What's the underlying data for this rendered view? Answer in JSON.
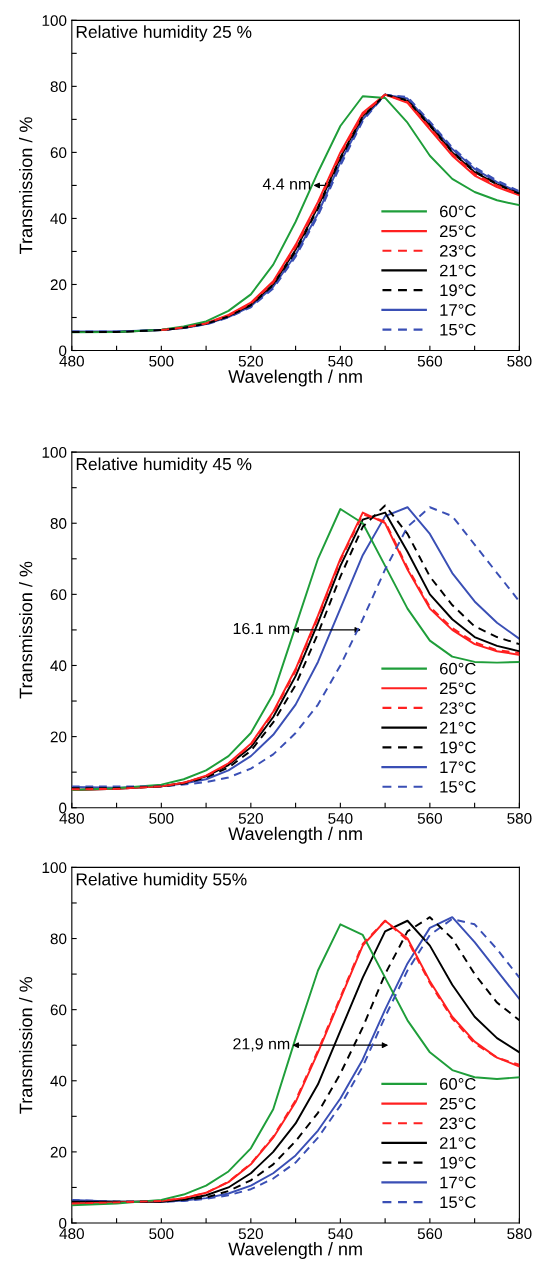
{
  "chart_data": [
    {
      "type": "line",
      "title": "Relative humidity 25 %",
      "xlabel": "Wavelength / nm",
      "ylabel": "Transmission / %",
      "x": [
        480,
        490,
        500,
        505,
        510,
        515,
        520,
        525,
        530,
        535,
        540,
        545,
        550,
        555,
        560,
        565,
        570,
        575,
        580
      ],
      "xlim": [
        480,
        580
      ],
      "xticks": [
        480,
        {
          "value": 490,
          "label": null
        },
        500,
        {
          "value": 510,
          "label": null
        },
        520,
        {
          "value": 530,
          "label": null
        },
        540,
        {
          "value": 550,
          "label": null
        },
        560,
        {
          "value": 570,
          "label": null
        },
        580
      ],
      "ylim": [
        0,
        100
      ],
      "yticks": [
        0,
        {
          "value": 10,
          "label": null
        },
        20,
        {
          "value": 30,
          "label": null
        },
        40,
        {
          "value": 50,
          "label": null
        },
        60,
        {
          "value": 70,
          "label": null
        },
        80,
        {
          "value": 90,
          "label": null
        },
        100
      ],
      "grid": false,
      "legend": "lower right",
      "marker": "none",
      "annotations": [
        "4.4 nm"
      ],
      "series": [
        {
          "name": "60°C",
          "color": "#1f9e3a",
          "line_style": "solid",
          "values": [
            5.5,
            5.6,
            6.3,
            7.3,
            8.8,
            12,
            17,
            26,
            39,
            54,
            68,
            77,
            76.5,
            69,
            59,
            52,
            48,
            45.5,
            44
          ]
        },
        {
          "name": "25°C",
          "color": "#ff2020",
          "line_style": "solid",
          "values": [
            null,
            null,
            6.2,
            7,
            8.3,
            10.8,
            14.5,
            21,
            32,
            45,
            60,
            72,
            77.5,
            75,
            67,
            59,
            53,
            49.5,
            47
          ]
        },
        {
          "name": "23°C",
          "color": "#ff2020",
          "line_style": "dashed",
          "values": [
            null,
            null,
            6.2,
            7,
            8.2,
            10.6,
            14.2,
            20.6,
            31.3,
            44.3,
            59.3,
            71.5,
            77.5,
            75.3,
            67.5,
            59.5,
            53.5,
            50,
            47.2
          ]
        },
        {
          "name": "21°C",
          "color": "#000000",
          "line_style": "solid",
          "values": [
            5.6,
            5.6,
            6.2,
            6.9,
            8.1,
            10.4,
            13.9,
            20.1,
            30.5,
            43.5,
            58.5,
            71,
            77.5,
            75.6,
            68,
            60,
            54,
            50.3,
            47.3
          ]
        },
        {
          "name": "19°C",
          "color": "#000000",
          "line_style": "dashed",
          "values": [
            5.6,
            5.6,
            6.2,
            6.9,
            8.1,
            10.3,
            13.7,
            19.8,
            30,
            43,
            58,
            70.7,
            77.5,
            75.8,
            68.3,
            60.3,
            54.3,
            50.5,
            47.5
          ]
        },
        {
          "name": "17°C",
          "color": "#3a4fb5",
          "line_style": "solid",
          "values": [
            5.8,
            5.8,
            6.2,
            6.8,
            8,
            10.1,
            13.4,
            19.3,
            29,
            41.5,
            57,
            70,
            77.5,
            76.3,
            68.8,
            61,
            55,
            51,
            47.8
          ]
        },
        {
          "name": "15°C",
          "color": "#3a4fb5",
          "line_style": "dashed",
          "values": [
            5.8,
            5.8,
            6.2,
            6.8,
            7.9,
            10,
            13.1,
            18.8,
            28.4,
            40.8,
            56,
            69.5,
            77.5,
            76.8,
            69.3,
            61.5,
            55.5,
            51.5,
            48.2
          ]
        }
      ]
    },
    {
      "type": "line",
      "title": "Relative humidity 45 %",
      "xlabel": "Wavelength / nm",
      "ylabel": "Transmission / %",
      "x": [
        480,
        490,
        500,
        505,
        510,
        515,
        520,
        525,
        530,
        535,
        540,
        545,
        550,
        555,
        560,
        565,
        570,
        575,
        580
      ],
      "xlim": [
        480,
        580
      ],
      "xticks": [
        480,
        {
          "value": 490,
          "label": null
        },
        500,
        {
          "value": 510,
          "label": null
        },
        520,
        {
          "value": 530,
          "label": null
        },
        540,
        {
          "value": 550,
          "label": null
        },
        560,
        {
          "value": 570,
          "label": null
        },
        580
      ],
      "ylim": [
        0,
        100
      ],
      "yticks": [
        0,
        {
          "value": 10,
          "label": null
        },
        20,
        {
          "value": 30,
          "label": null
        },
        40,
        {
          "value": 50,
          "label": null
        },
        60,
        {
          "value": 70,
          "label": null
        },
        80,
        {
          "value": 90,
          "label": null
        },
        100
      ],
      "grid": false,
      "legend": "lower right",
      "marker": "none",
      "annotations": [
        "16.1 nm"
      ],
      "series": [
        {
          "name": "60°C",
          "color": "#1f9e3a",
          "line_style": "solid",
          "values": [
            5,
            5.5,
            6.5,
            8,
            10.5,
            14.5,
            21,
            32,
            51,
            70,
            84,
            80,
            68,
            56,
            47,
            42.5,
            41,
            40.8,
            41
          ]
        },
        {
          "name": "25°C",
          "color": "#ff2020",
          "line_style": "solid",
          "values": [
            5,
            5.3,
            6,
            7,
            9,
            12.5,
            18,
            27,
            39,
            54,
            70,
            83,
            80,
            67,
            56,
            50,
            46,
            44,
            43
          ]
        },
        {
          "name": "23°C",
          "color": "#ff2020",
          "line_style": "dashed",
          "values": [
            5.2,
            5.3,
            6,
            7,
            8.9,
            12.3,
            17.7,
            26.6,
            38.5,
            53.5,
            69.5,
            82.5,
            80.5,
            67.5,
            56.5,
            50.5,
            46.5,
            44.3,
            43.5
          ]
        },
        {
          "name": "21°C",
          "color": "#000000",
          "line_style": "solid",
          "values": [
            5,
            5.3,
            6,
            7,
            8.8,
            12,
            17,
            25.5,
            37,
            52,
            68,
            81,
            83,
            72,
            60,
            53,
            48,
            45.5,
            44
          ]
        },
        {
          "name": "19°C",
          "color": "#000000",
          "line_style": "dashed",
          "values": [
            5.5,
            5.5,
            6,
            6.8,
            8.5,
            11.3,
            16,
            24,
            34.5,
            49,
            65,
            79,
            85,
            77,
            65,
            57,
            51,
            48,
            46
          ]
        },
        {
          "name": "17°C",
          "color": "#3a4fb5",
          "line_style": "solid",
          "values": [
            5.8,
            5.6,
            6,
            6.8,
            8,
            10.5,
            14.5,
            20.5,
            29,
            41,
            56,
            71,
            82,
            84.5,
            77,
            66,
            58,
            52,
            47.5
          ]
        },
        {
          "name": "15°C",
          "color": "#3a4fb5",
          "line_style": "dashed",
          "values": [
            6,
            6,
            6,
            6.5,
            7.2,
            8.5,
            11,
            15,
            21,
            29,
            40,
            53,
            67,
            79,
            84.5,
            82,
            74,
            66,
            58
          ]
        }
      ]
    },
    {
      "type": "line",
      "title": "Relative humidity 55%",
      "xlabel": "Wavelength / nm",
      "ylabel": "Transmission / %",
      "x": [
        480,
        490,
        500,
        505,
        510,
        515,
        520,
        525,
        530,
        535,
        540,
        545,
        550,
        555,
        560,
        565,
        570,
        575,
        580
      ],
      "xlim": [
        480,
        580
      ],
      "xticks": [
        480,
        {
          "value": 490,
          "label": null
        },
        500,
        {
          "value": 510,
          "label": null
        },
        520,
        {
          "value": 530,
          "label": null
        },
        540,
        {
          "value": 550,
          "label": null
        },
        560,
        {
          "value": 570,
          "label": null
        },
        580
      ],
      "ylim": [
        0,
        100
      ],
      "yticks": [
        0,
        {
          "value": 10,
          "label": null
        },
        20,
        {
          "value": 30,
          "label": null
        },
        40,
        {
          "value": 50,
          "label": null
        },
        60,
        {
          "value": 70,
          "label": null
        },
        80,
        {
          "value": 90,
          "label": null
        },
        100
      ],
      "grid": false,
      "legend": "lower right",
      "marker": "none",
      "annotations": [
        "21,9 nm"
      ],
      "series": [
        {
          "name": "60°C",
          "color": "#1f9e3a",
          "line_style": "solid",
          "values": [
            5,
            5.5,
            6.5,
            8,
            10.5,
            14.5,
            21,
            32,
            52,
            71,
            84,
            81,
            69,
            57,
            48,
            43,
            41,
            40.5,
            41
          ]
        },
        {
          "name": "25°C",
          "color": "#ff2020",
          "line_style": "solid",
          "values": [
            5.5,
            5.8,
            6.2,
            7,
            8.5,
            11.5,
            16.5,
            24,
            34,
            48,
            63,
            78,
            85,
            80,
            68,
            58,
            51,
            46.5,
            44
          ]
        },
        {
          "name": "23°C",
          "color": "#ff2020",
          "line_style": "dashed",
          "values": [
            5.5,
            5.8,
            6.2,
            7,
            8.5,
            11.6,
            16.7,
            24.3,
            34.5,
            48.5,
            63.5,
            78.5,
            85,
            79.5,
            67.5,
            57.5,
            50.5,
            46.5,
            44.5
          ]
        },
        {
          "name": "21°C",
          "color": "#000000",
          "line_style": "solid",
          "values": [
            6,
            6,
            6,
            6.6,
            7.8,
            10,
            14,
            20,
            28,
            39,
            54,
            69,
            82,
            85,
            78,
            67,
            58,
            52,
            48
          ]
        },
        {
          "name": "19°C",
          "color": "#000000",
          "line_style": "dashed",
          "values": [
            6,
            6,
            6,
            6.5,
            7.2,
            9,
            12,
            16.5,
            23,
            31,
            42,
            55,
            70,
            82,
            86,
            80,
            70,
            62,
            57
          ]
        },
        {
          "name": "17°C",
          "color": "#3a4fb5",
          "line_style": "solid",
          "values": [
            6.5,
            6,
            6,
            6.3,
            7,
            8.3,
            10.5,
            14,
            19,
            26,
            35,
            46,
            60,
            73,
            83,
            86,
            79,
            71,
            63
          ]
        },
        {
          "name": "15°C",
          "color": "#3a4fb5",
          "line_style": "dashed",
          "values": [
            6.5,
            6,
            6,
            6.2,
            6.8,
            7.8,
            9.5,
            12.5,
            17,
            24,
            33,
            44,
            58,
            71,
            81,
            85.5,
            84,
            77,
            69
          ]
        }
      ]
    }
  ]
}
